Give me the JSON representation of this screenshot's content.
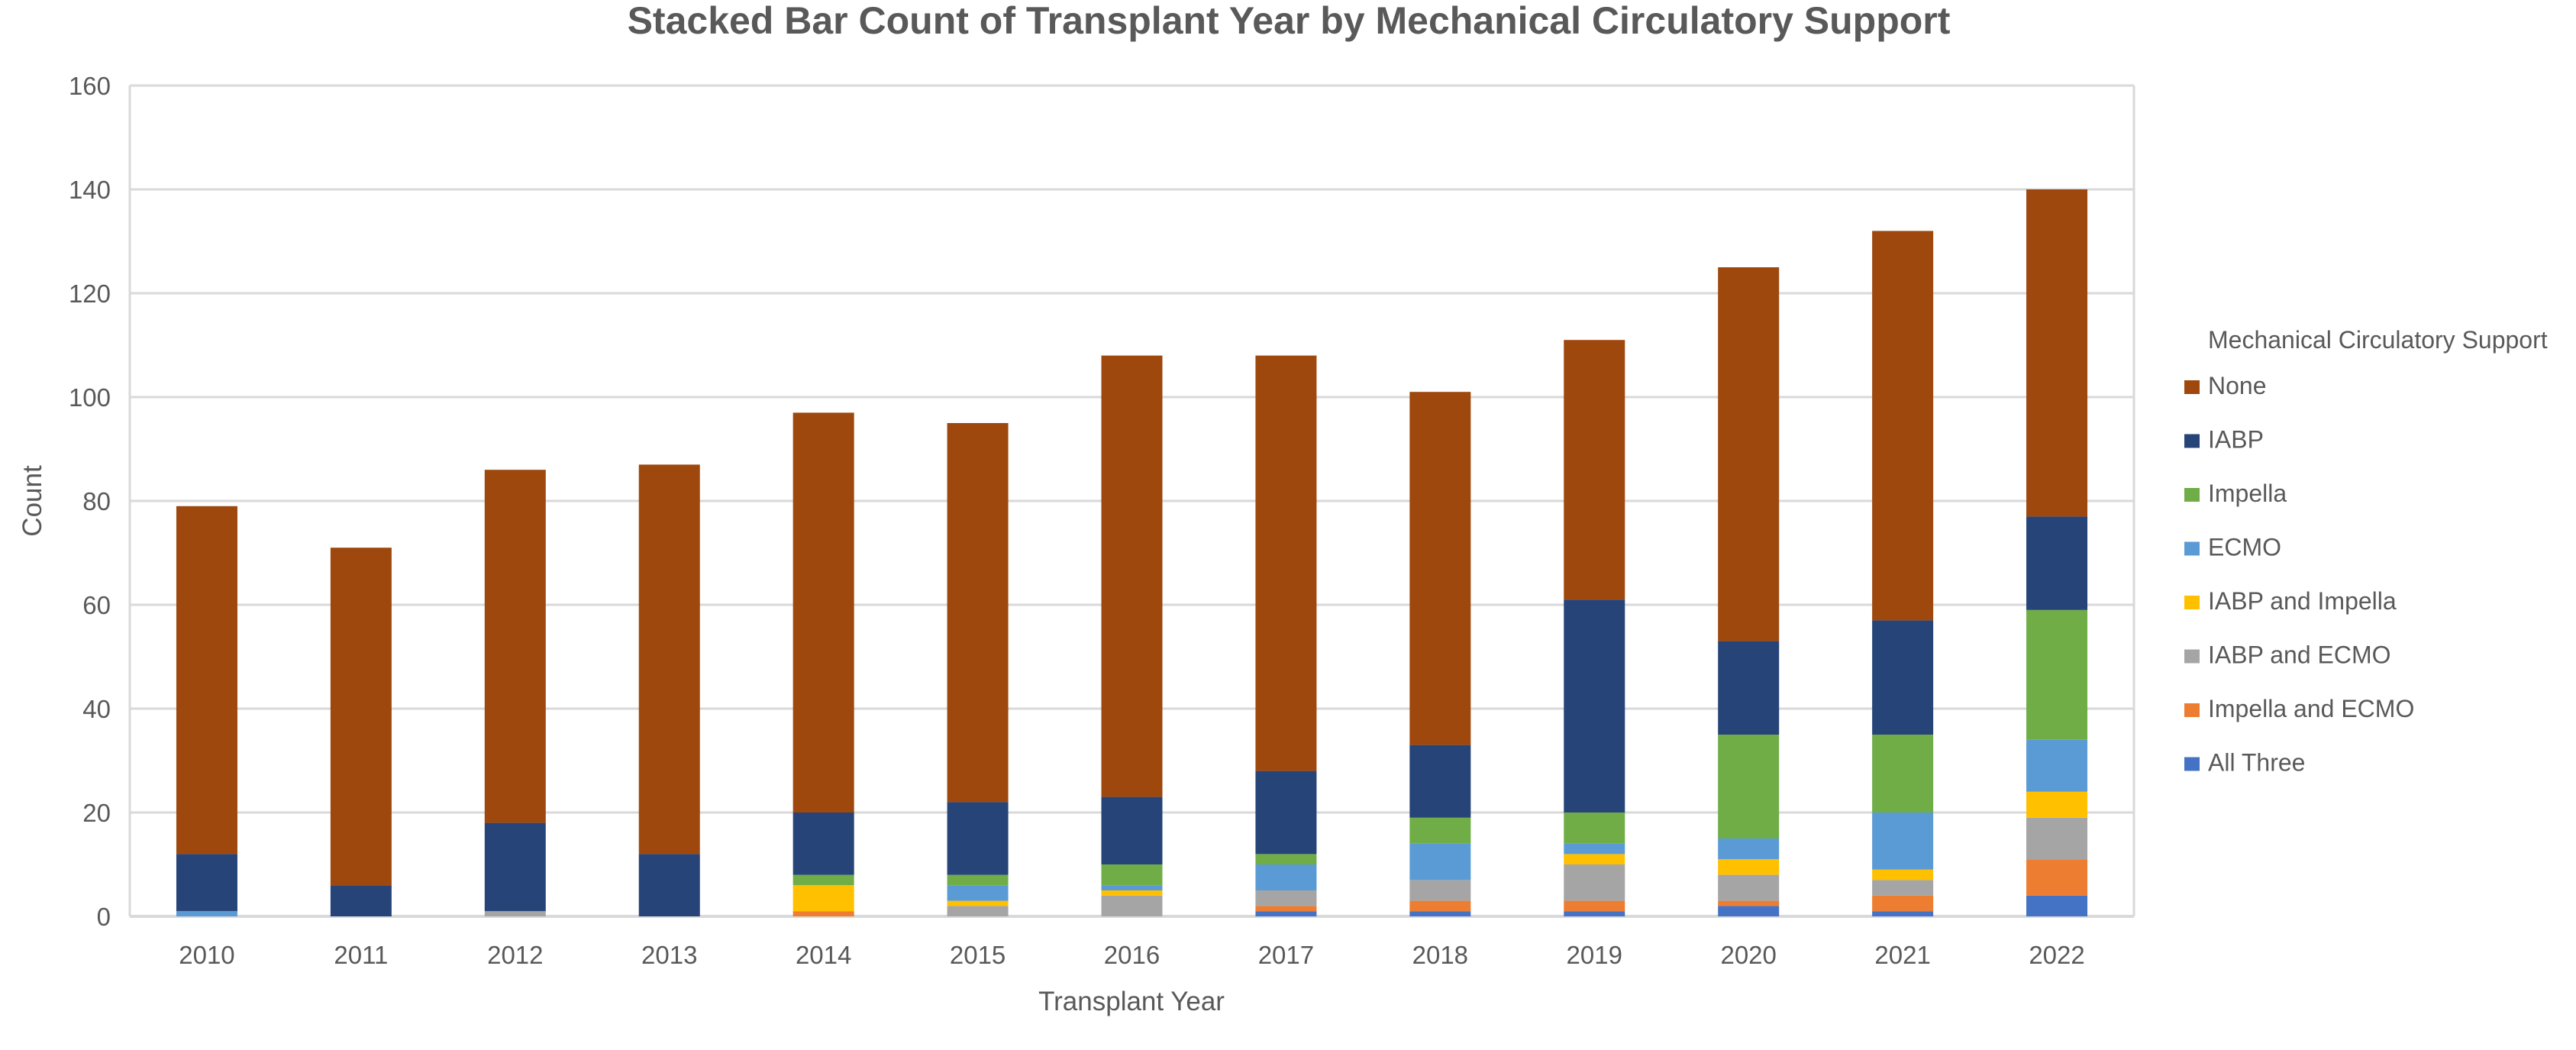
{
  "chart_data": {
    "type": "bar",
    "stacked": true,
    "title": "Stacked Bar Count of Transplant Year by Mechanical Circulatory Support",
    "xlabel": "Transplant Year",
    "ylabel": "Count",
    "ylim": [
      0,
      160
    ],
    "yticks": [
      0,
      20,
      40,
      60,
      80,
      100,
      120,
      140,
      160
    ],
    "grid": true,
    "legend_title": "Mechanical Circulatory Support",
    "legend_position": "right",
    "categories": [
      "2010",
      "2011",
      "2012",
      "2013",
      "2014",
      "2015",
      "2016",
      "2017",
      "2018",
      "2019",
      "2020",
      "2021",
      "2022"
    ],
    "series": [
      {
        "name": "All Three",
        "color": "#4472C4",
        "values": [
          0,
          0,
          0,
          0,
          0,
          0,
          0,
          1,
          1,
          1,
          2,
          1,
          4
        ]
      },
      {
        "name": "Impella and ECMO",
        "color": "#ED7D31",
        "values": [
          0,
          0,
          0,
          0,
          1,
          0,
          0,
          1,
          2,
          2,
          1,
          3,
          7
        ]
      },
      {
        "name": "IABP and ECMO",
        "color": "#A5A5A5",
        "values": [
          0,
          0,
          1,
          0,
          0,
          2,
          4,
          3,
          4,
          7,
          5,
          3,
          8
        ]
      },
      {
        "name": "IABP and Impella",
        "color": "#FFC000",
        "values": [
          0,
          0,
          0,
          0,
          5,
          1,
          1,
          0,
          0,
          2,
          3,
          2,
          5
        ]
      },
      {
        "name": "ECMO",
        "color": "#5B9BD5",
        "values": [
          1,
          0,
          0,
          0,
          0,
          3,
          1,
          5,
          7,
          2,
          4,
          11,
          10
        ]
      },
      {
        "name": "Impella",
        "color": "#70AD47",
        "values": [
          0,
          0,
          0,
          0,
          2,
          2,
          4,
          2,
          5,
          6,
          20,
          15,
          25
        ]
      },
      {
        "name": "IABP",
        "color": "#264478",
        "values": [
          11,
          6,
          17,
          12,
          12,
          14,
          13,
          16,
          14,
          41,
          18,
          22,
          18
        ]
      },
      {
        "name": "None",
        "color": "#9E480E",
        "values": [
          67,
          65,
          68,
          75,
          77,
          73,
          85,
          80,
          68,
          50,
          72,
          75,
          63
        ]
      }
    ],
    "legend_order": [
      "None",
      "IABP",
      "Impella",
      "ECMO",
      "IABP and Impella",
      "IABP and ECMO",
      "Impella and ECMO",
      "All Three"
    ]
  }
}
